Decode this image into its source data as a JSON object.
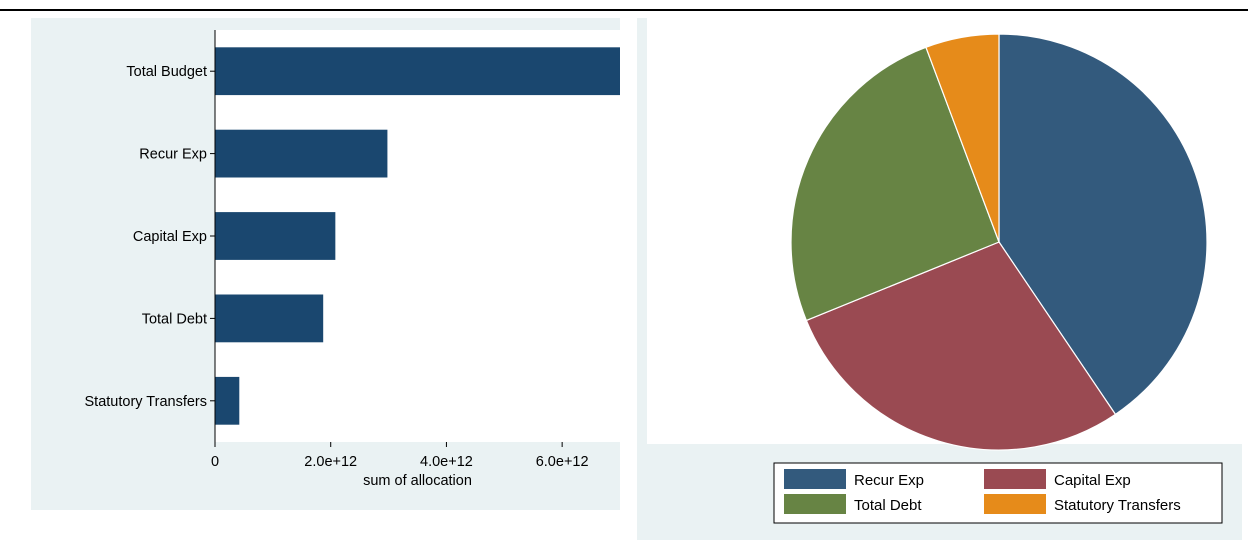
{
  "chart_data": [
    {
      "type": "bar",
      "orientation": "horizontal",
      "categories": [
        "Total Budget",
        "Recur Exp",
        "Capital Exp",
        "Total Debt",
        "Statutory Transfers"
      ],
      "values": [
        7000000000000.0,
        2980000000000.0,
        2080000000000.0,
        1870000000000.0,
        420000000000.0
      ],
      "xlabel": "sum of allocation",
      "xlim": [
        0,
        7000000000000.0
      ],
      "xticks": [
        0,
        2000000000000.0,
        4000000000000.0,
        6000000000000.0
      ],
      "xtick_labels": [
        "0",
        "2.0e+12",
        "4.0e+12",
        "6.0e+12"
      ],
      "grid": false,
      "colors": {
        "bar": "#1a476f",
        "background": "#eaf2f3"
      }
    },
    {
      "type": "pie",
      "labels": [
        "Recur Exp",
        "Capital Exp",
        "Total Debt",
        "Statutory Transfers"
      ],
      "values": [
        2980000000000.0,
        2080000000000.0,
        1870000000000.0,
        420000000000.0
      ],
      "colors": [
        "#335a7d",
        "#9a4a52",
        "#678444",
        "#e68b1a"
      ],
      "legend_position": "bottom",
      "background": "#eaf2f3"
    }
  ]
}
